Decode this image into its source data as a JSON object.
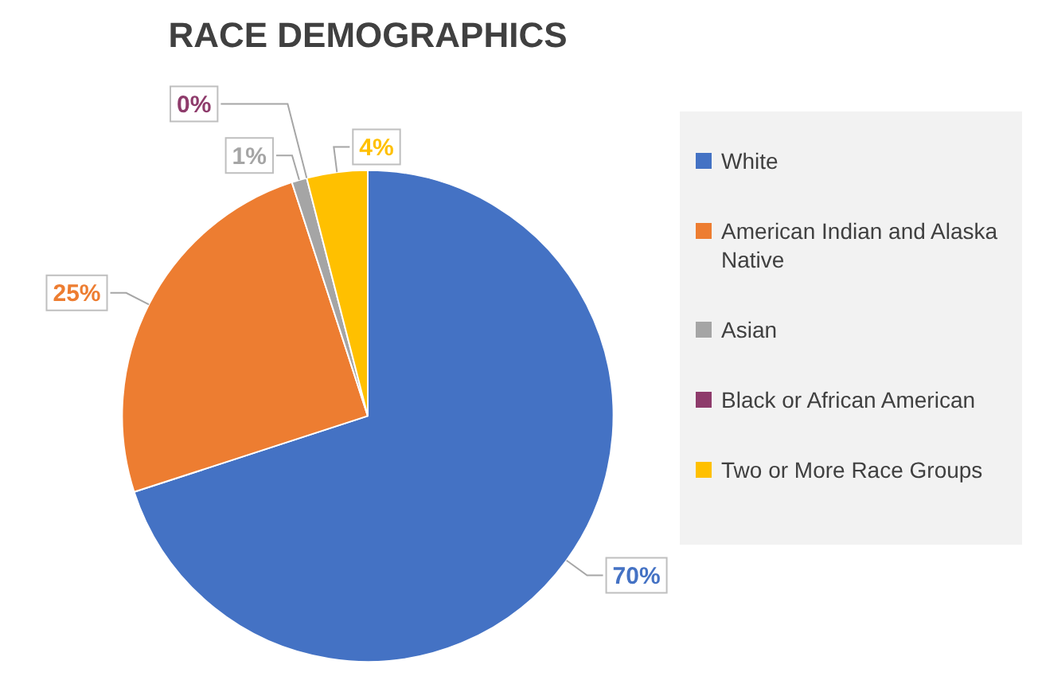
{
  "chart_data": {
    "type": "pie",
    "title": "RACE DEMOGRAPHICS",
    "categories": [
      "White",
      "American Indian and Alaska Native",
      "Asian",
      "Black or African American",
      "Two or More Race Groups"
    ],
    "values": [
      70,
      25,
      1,
      0,
      4
    ],
    "colors": [
      "#4472c4",
      "#ed7d31",
      "#a5a5a5",
      "#8e3b6b",
      "#ffc000"
    ],
    "value_labels": [
      "70%",
      "25%",
      "1%",
      "0%",
      "4%"
    ],
    "legend": "right"
  }
}
